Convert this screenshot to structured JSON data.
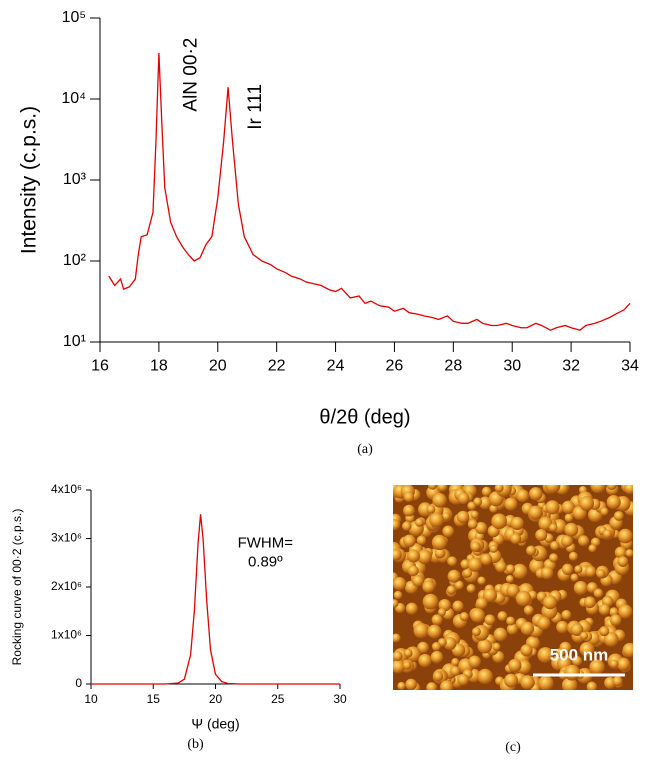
{
  "chart_data": [
    {
      "type": "line",
      "caption": "(a)",
      "x_label": "θ/2θ (deg)",
      "y_label": "Intensity (c.p.s.)",
      "log_y": true,
      "color": "#e00000",
      "xlim": [
        16,
        34
      ],
      "xticks": [
        16,
        18,
        20,
        22,
        24,
        26,
        28,
        30,
        32,
        34
      ],
      "ylim": [
        10,
        100000
      ],
      "yticks": [
        {
          "value": 10,
          "label": "10¹"
        },
        {
          "value": 100,
          "label": "10²"
        },
        {
          "value": 1000,
          "label": "10³"
        },
        {
          "value": 10000,
          "label": "10⁴"
        },
        {
          "value": 100000,
          "label": "10⁵"
        }
      ],
      "annotations": [
        {
          "text": "AlN 00·2",
          "x": 19.1,
          "y": 20000
        },
        {
          "text": "Ir 111",
          "x": 21.3,
          "y": 8000
        }
      ],
      "x": [
        16.3,
        16.5,
        16.7,
        16.8,
        17.0,
        17.2,
        17.3,
        17.4,
        17.6,
        17.8,
        17.9,
        18.0,
        18.1,
        18.2,
        18.4,
        18.6,
        18.8,
        19.0,
        19.2,
        19.4,
        19.6,
        19.8,
        20.0,
        20.2,
        20.35,
        20.5,
        20.7,
        20.9,
        21.2,
        21.5,
        21.8,
        22.0,
        22.3,
        22.5,
        22.8,
        23.0,
        23.3,
        23.5,
        23.8,
        24.0,
        24.2,
        24.5,
        24.8,
        25.0,
        25.2,
        25.5,
        25.8,
        26.0,
        26.3,
        26.5,
        26.8,
        27.0,
        27.3,
        27.5,
        27.8,
        28.0,
        28.3,
        28.5,
        28.8,
        29.0,
        29.3,
        29.5,
        29.8,
        30.0,
        30.3,
        30.5,
        30.8,
        31.0,
        31.3,
        31.5,
        31.8,
        32.0,
        32.3,
        32.5,
        32.8,
        33.0,
        33.3,
        33.5,
        33.8,
        34.0
      ],
      "values": [
        65,
        50,
        60,
        45,
        48,
        60,
        120,
        200,
        210,
        400,
        3000,
        37000,
        5000,
        800,
        300,
        200,
        150,
        120,
        100,
        110,
        160,
        200,
        600,
        3000,
        14000,
        3000,
        500,
        200,
        120,
        100,
        90,
        80,
        72,
        65,
        60,
        55,
        52,
        50,
        44,
        42,
        46,
        35,
        37,
        30,
        32,
        28,
        27,
        24,
        26,
        23,
        22,
        21,
        20,
        19,
        21,
        18,
        17,
        17,
        19,
        17,
        16,
        16,
        17,
        16,
        15,
        15,
        17,
        16,
        14,
        15,
        16,
        15,
        14,
        16,
        17,
        18,
        20,
        22,
        25,
        30
      ]
    },
    {
      "type": "line",
      "caption": "(b)",
      "x_label": "Ψ (deg)",
      "y_label": "Rocking curve of 00·2 (c.p.s.)",
      "log_y": false,
      "color": "#e00000",
      "xlim": [
        10,
        30
      ],
      "xticks": [
        10,
        15,
        20,
        25,
        30
      ],
      "ylim": [
        0,
        4000000
      ],
      "yticks": [
        0,
        {
          "value": 1000000,
          "label": "1x10⁶"
        },
        {
          "value": 2000000,
          "label": "2x10⁶"
        },
        {
          "value": 3000000,
          "label": "3x10⁶"
        },
        {
          "value": 4000000,
          "label": "4x10⁶"
        }
      ],
      "annotations": [
        {
          "text": "FWHM=",
          "x": 24,
          "y": 2900000
        },
        {
          "text": "0.89º",
          "x": 24,
          "y": 2500000
        }
      ],
      "x": [
        10,
        16,
        17,
        17.5,
        18,
        18.3,
        18.6,
        18.8,
        19.0,
        19.3,
        19.6,
        20,
        20.5,
        21,
        22,
        30
      ],
      "values": [
        0,
        0,
        20000,
        100000,
        600000,
        1500000,
        2900000,
        3500000,
        3000000,
        1700000,
        700000,
        200000,
        50000,
        10000,
        0,
        0
      ]
    }
  ],
  "image": {
    "scale_label": "500 nm",
    "caption": "(c)"
  }
}
